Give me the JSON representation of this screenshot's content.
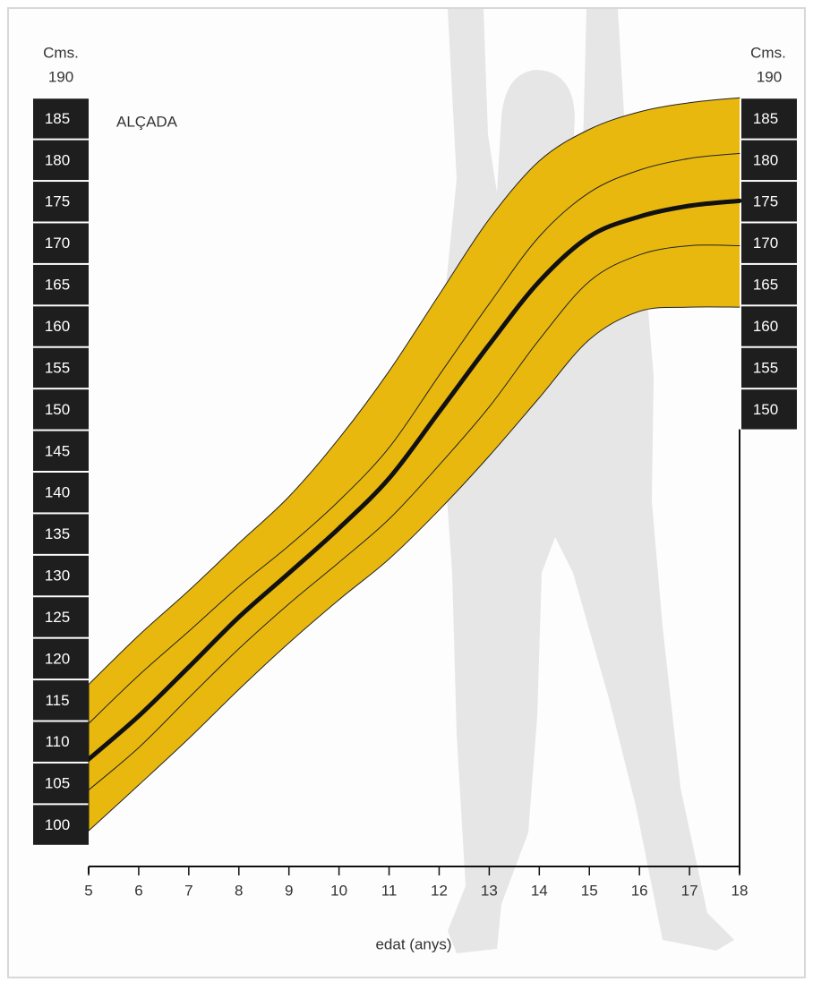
{
  "chart_data": {
    "type": "line",
    "title": "ALÇADA",
    "x_label": "edat (anys)",
    "y_label": "Cms.",
    "y2_label": "Cms.",
    "x": [
      5,
      6,
      7,
      8,
      9,
      10,
      11,
      12,
      13,
      14,
      15,
      16,
      17,
      18
    ],
    "xlim": [
      5,
      18
    ],
    "xticks": [
      5,
      6,
      7,
      8,
      9,
      10,
      11,
      12,
      13,
      14,
      15,
      16,
      17,
      18
    ],
    "ylim": [
      95,
      190
    ],
    "yticks": [
      100,
      105,
      110,
      115,
      120,
      125,
      130,
      135,
      140,
      145,
      150,
      155,
      160,
      165,
      170,
      175,
      180,
      185,
      190
    ],
    "y2lim": [
      95,
      190
    ],
    "y2ticks": [
      150,
      155,
      160,
      165,
      170,
      175,
      180,
      185,
      190
    ],
    "band_color": "#e8b80e",
    "tick_box_color": "#1e1e1e",
    "series": [
      {
        "color": "#222222",
        "line_width": 1,
        "values": [
          116.9,
          122.8,
          128.2,
          133.9,
          139.5,
          146.5,
          154.6,
          163.8,
          172.9,
          179.9,
          183.7,
          185.8,
          186.9,
          187.5
        ]
      },
      {
        "color": "#222222",
        "line_width": 1,
        "values": [
          112.2,
          118.0,
          123.3,
          128.7,
          133.6,
          139.0,
          145.4,
          154.1,
          162.7,
          170.8,
          176.1,
          178.8,
          180.2,
          180.8
        ]
      },
      {
        "color": "#111111",
        "line_width": 5,
        "values": [
          107.9,
          113.1,
          119.0,
          125.0,
          130.3,
          135.7,
          141.7,
          149.7,
          157.8,
          165.4,
          170.8,
          173.2,
          174.5,
          175.1
        ]
      },
      {
        "color": "#222222",
        "line_width": 1,
        "values": [
          104.2,
          109.3,
          115.3,
          121.2,
          126.6,
          131.6,
          136.8,
          143.3,
          150.3,
          158.4,
          165.4,
          168.6,
          169.7,
          169.7
        ]
      },
      {
        "color": "#222222",
        "line_width": 1,
        "values": [
          99.3,
          104.8,
          110.4,
          116.3,
          121.9,
          127.1,
          132.0,
          137.9,
          144.4,
          151.4,
          158.4,
          161.8,
          162.3,
          162.3
        ]
      }
    ]
  }
}
